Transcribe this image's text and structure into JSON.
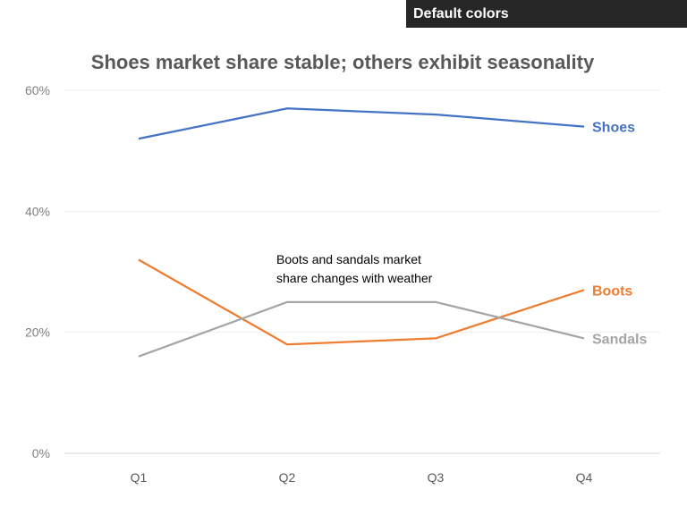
{
  "banner": {
    "label": "Default colors"
  },
  "chart_data": {
    "type": "line",
    "title": "Shoes market share stable; others exhibit seasonality",
    "categories": [
      "Q1",
      "Q2",
      "Q3",
      "Q4"
    ],
    "ylim": [
      0,
      60
    ],
    "yticks": [
      "0%",
      "20%",
      "40%",
      "60%"
    ],
    "ytick_values": [
      0,
      20,
      40,
      60
    ],
    "grid": true,
    "legend": "direct labels at line ends (right)",
    "series": [
      {
        "name": "Shoes",
        "values": [
          52,
          57,
          56,
          54
        ],
        "color": "#4472C4"
      },
      {
        "name": "Boots",
        "values": [
          32,
          18,
          19,
          27
        ],
        "color": "#ED7D31"
      },
      {
        "name": "Sandals",
        "values": [
          16,
          25,
          25,
          19
        ],
        "color": "#A5A5A5"
      }
    ],
    "annotation": [
      "Boots and sandals market",
      "share changes with weather"
    ]
  }
}
